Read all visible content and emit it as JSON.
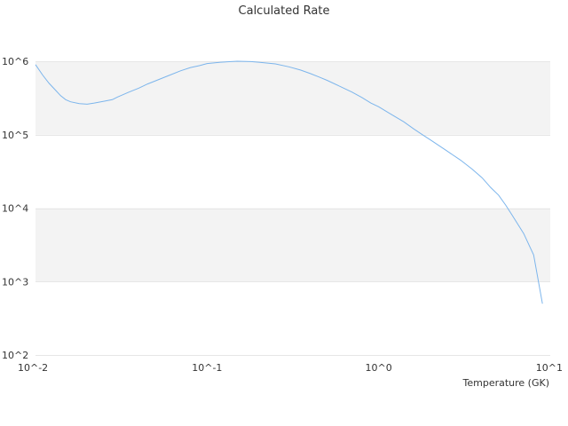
{
  "chart_data": {
    "type": "line",
    "title": "Calculated Rate",
    "xlabel": "Temperature (GK)",
    "ylabel": "",
    "x_scale": "log",
    "y_scale": "log",
    "xlim": [
      0.01,
      10
    ],
    "ylim": [
      100,
      1000000
    ],
    "x_ticks": [
      {
        "value": 0.01,
        "label": "10^-2"
      },
      {
        "value": 0.1,
        "label": "10^-1"
      },
      {
        "value": 1,
        "label": "10^0"
      },
      {
        "value": 10,
        "label": "10^1"
      }
    ],
    "y_ticks": [
      {
        "value": 100,
        "label": "10^2"
      },
      {
        "value": 1000,
        "label": "10^3"
      },
      {
        "value": 10000,
        "label": "10^4"
      },
      {
        "value": 100000,
        "label": "10^5"
      },
      {
        "value": 1000000,
        "label": "10^6"
      }
    ],
    "grid": "horizontal bands",
    "colors": {
      "line": "#7cb5ec",
      "band": "#f3f3f3",
      "gridline": "#e6e6e6"
    },
    "series": [
      {
        "x": [
          0.01,
          0.011,
          0.012,
          0.013,
          0.014,
          0.015,
          0.016,
          0.018,
          0.02,
          0.022,
          0.025,
          0.028,
          0.03,
          0.035,
          0.04,
          0.045,
          0.05,
          0.06,
          0.07,
          0.08,
          0.09,
          0.1,
          0.12,
          0.15,
          0.18,
          0.2,
          0.25,
          0.3,
          0.35,
          0.4,
          0.45,
          0.5,
          0.6,
          0.7,
          0.8,
          0.9,
          1.0,
          1.2,
          1.4,
          1.6,
          1.8,
          2.0,
          2.5,
          3.0,
          3.5,
          4.0,
          4.5,
          5.0,
          5.5,
          6.0,
          7.0,
          8.0,
          9.0
        ],
        "y": [
          900000,
          650000,
          500000,
          410000,
          340000,
          300000,
          280000,
          265000,
          260000,
          270000,
          285000,
          300000,
          325000,
          380000,
          430000,
          490000,
          540000,
          640000,
          740000,
          820000,
          870000,
          930000,
          970000,
          1000000,
          990000,
          970000,
          920000,
          840000,
          760000,
          680000,
          610000,
          550000,
          450000,
          380000,
          320000,
          270000,
          240000,
          185000,
          150000,
          120000,
          100000,
          85000,
          60000,
          45000,
          34000,
          26000,
          19000,
          15000,
          11000,
          8000,
          4500,
          2300,
          500
        ]
      }
    ]
  }
}
